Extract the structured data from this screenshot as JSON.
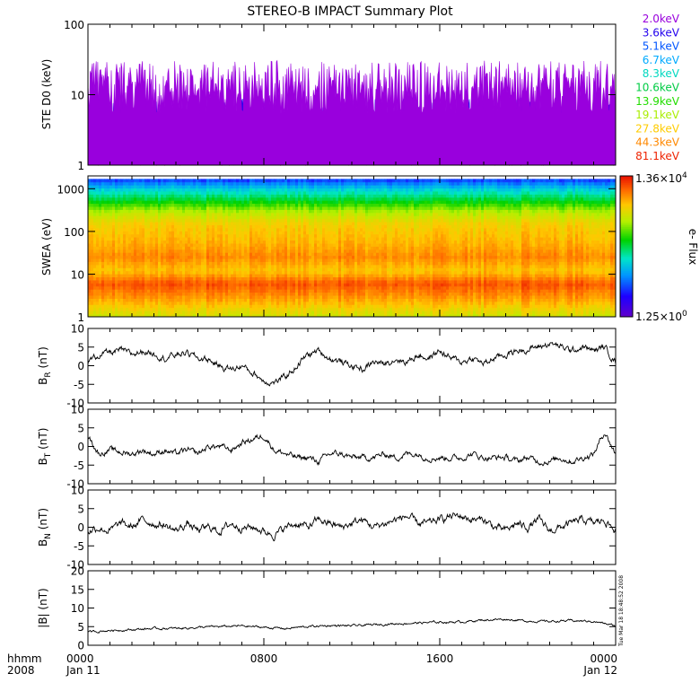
{
  "title": "STEREO-B IMPACT Summary Plot",
  "footer": {
    "unit_label": "hhmm",
    "year": "2008",
    "ticks": [
      {
        "time": "0000",
        "date": "Jan 11"
      },
      {
        "time": "0800",
        "date": ""
      },
      {
        "time": "1600",
        "date": ""
      },
      {
        "time": "0000",
        "date": "Jan 12"
      }
    ]
  },
  "timestamp": "Tue Mar 18 18:48:52 2008",
  "colors": {
    "line": "#000000",
    "frame": "#000000"
  },
  "chart_data": [
    {
      "type": "line",
      "ylabel": "STE D0 (keV)",
      "yscale": "log",
      "ylim": [
        1,
        100
      ],
      "yticks": [
        "1",
        "10",
        "100"
      ],
      "xlim_hours": [
        0,
        24
      ],
      "legend_placement": "right",
      "series": [
        {
          "name": "2.0keV",
          "color": "#9900dd",
          "typical": 16,
          "spread": 0.28,
          "floor": 6
        },
        {
          "name": "3.6keV",
          "color": "#2200ee",
          "typical": 5.5,
          "spread": 0.22,
          "floor": 3
        },
        {
          "name": "5.1keV",
          "color": "#0055ff",
          "typical": 3.6,
          "spread": 0.18,
          "floor": 2.4
        },
        {
          "name": "6.7keV",
          "color": "#00aaff",
          "typical": 2.7,
          "spread": 0.12,
          "floor": 2.2
        },
        {
          "name": "8.3keV",
          "color": "#00d8c0",
          "typical": 2.2,
          "spread": 0.09,
          "floor": 2.0
        },
        {
          "name": "10.6keV",
          "color": "#00cc44",
          "typical": 1.95,
          "spread": 0.06,
          "floor": 1.8
        },
        {
          "name": "13.9keV",
          "color": "#22dd00",
          "typical": 1.8,
          "spread": 0.05,
          "floor": 1.7
        },
        {
          "name": "19.1keV",
          "color": "#aaee00",
          "typical": 1.6,
          "spread": 0.05,
          "floor": 1.5
        },
        {
          "name": "27.8keV",
          "color": "#ffcc00",
          "typical": 1.4,
          "spread": 0.05,
          "floor": 1.2
        },
        {
          "name": "44.3keV",
          "color": "#ff8800",
          "typical": 1.25,
          "spread": 0.04,
          "floor": 1.1
        },
        {
          "name": "81.1keV",
          "color": "#ee2200",
          "typical": 1.1,
          "spread": 0.03,
          "floor": 1.0
        }
      ]
    },
    {
      "type": "heatmap",
      "ylabel": "SWEA (eV)",
      "yscale": "log",
      "ylim": [
        1,
        2000
      ],
      "yticks": [
        "1",
        "10",
        "100",
        "1000"
      ],
      "xlim_hours": [
        0,
        24
      ],
      "colorbar": {
        "label": "e- Flux",
        "max_mantissa": "1.36×10",
        "max_exp": "4",
        "min_mantissa": "1.25×10",
        "min_exp": "0",
        "scale": "log"
      },
      "energy_profile_log_flux": [
        {
          "energy_ev": 1,
          "value": 0.72
        },
        {
          "energy_ev": 3,
          "value": 0.86
        },
        {
          "energy_ev": 6,
          "value": 0.93
        },
        {
          "energy_ev": 12,
          "value": 0.8
        },
        {
          "energy_ev": 25,
          "value": 0.87
        },
        {
          "energy_ev": 60,
          "value": 0.82
        },
        {
          "energy_ev": 150,
          "value": 0.78
        },
        {
          "energy_ev": 300,
          "value": 0.68
        },
        {
          "energy_ev": 600,
          "value": 0.5
        },
        {
          "energy_ev": 1000,
          "value": 0.38
        },
        {
          "energy_ev": 1700,
          "value": 0.2
        }
      ]
    },
    {
      "type": "line",
      "ylabel_main": "B",
      "ylabel_sub": "R",
      "ylabel_unit": " (nT)",
      "ylim": [
        -10,
        10
      ],
      "yticks": [
        "-10",
        "-5",
        "0",
        "5",
        "10"
      ],
      "xlim_hours": [
        0,
        24
      ],
      "x_hours": [
        0,
        0.5,
        1,
        1.5,
        2,
        2.5,
        3,
        3.5,
        4,
        4.5,
        5,
        5.5,
        6,
        6.5,
        7,
        7.5,
        8,
        8.5,
        9,
        9.5,
        10,
        10.5,
        11,
        11.5,
        12,
        12.5,
        13,
        13.5,
        14,
        14.5,
        15,
        15.5,
        16,
        16.5,
        17,
        17.5,
        18,
        18.5,
        19,
        19.5,
        20,
        20.5,
        21,
        21.5,
        22,
        22.5,
        23,
        23.5,
        24
      ],
      "values": [
        1,
        3,
        3.5,
        4,
        3,
        4,
        3.5,
        2,
        3,
        3.5,
        2,
        1.5,
        0,
        -1,
        0,
        -2,
        -4,
        -4.5,
        -3,
        0,
        3,
        4,
        2,
        1,
        0,
        -1,
        1,
        0.5,
        2,
        1,
        3,
        2,
        4,
        2,
        1,
        2,
        0.5,
        2,
        3,
        4,
        4.5,
        5,
        6,
        5,
        4,
        5,
        4,
        5,
        1
      ],
      "noise_amp": 1.2
    },
    {
      "type": "line",
      "ylabel_main": "B",
      "ylabel_sub": "T",
      "ylabel_unit": " (nT)",
      "ylim": [
        -10,
        10
      ],
      "yticks": [
        "-10",
        "-5",
        "0",
        "5",
        "10"
      ],
      "xlim_hours": [
        0,
        24
      ],
      "x_hours": [
        0,
        0.5,
        1,
        1.5,
        2,
        2.5,
        3,
        3.5,
        4,
        4.5,
        5,
        5.5,
        6,
        6.5,
        7,
        7.5,
        8,
        8.5,
        9,
        9.5,
        10,
        10.5,
        11,
        11.5,
        12,
        12.5,
        13,
        13.5,
        14,
        14.5,
        15,
        15.5,
        16,
        16.5,
        17,
        17.5,
        18,
        18.5,
        19,
        19.5,
        20,
        20.5,
        21,
        21.5,
        22,
        22.5,
        23,
        23.5,
        24
      ],
      "values": [
        3,
        -2,
        -1,
        -1.5,
        -2,
        -1,
        -2,
        -1,
        -2,
        -1,
        -2,
        0,
        0,
        -1,
        1,
        2,
        3,
        -1,
        -2,
        -3,
        -3,
        -4,
        -2,
        -2,
        -3,
        -3,
        -3,
        -2,
        -3,
        -2,
        -2,
        -3,
        -3,
        -3,
        -3,
        -2,
        -3,
        -3,
        -3,
        -4,
        -3,
        -4,
        -4,
        -3,
        -4,
        -3,
        -2,
        4,
        -2
      ],
      "noise_amp": 1.1
    },
    {
      "type": "line",
      "ylabel_main": "B",
      "ylabel_sub": "N",
      "ylabel_unit": " (nT)",
      "ylim": [
        -10,
        10
      ],
      "yticks": [
        "-10",
        "-5",
        "0",
        "5",
        "10"
      ],
      "xlim_hours": [
        0,
        24
      ],
      "x_hours": [
        0,
        0.5,
        1,
        1.5,
        2,
        2.5,
        3,
        3.5,
        4,
        4.5,
        5,
        5.5,
        6,
        6.5,
        7,
        7.5,
        8,
        8.5,
        9,
        9.5,
        10,
        10.5,
        11,
        11.5,
        12,
        12.5,
        13,
        13.5,
        14,
        14.5,
        15,
        15.5,
        16,
        16.5,
        17,
        17.5,
        18,
        18.5,
        19,
        19.5,
        20,
        20.5,
        21,
        21.5,
        22,
        22.5,
        23,
        23.5,
        24
      ],
      "values": [
        -1,
        0,
        -1,
        1,
        0,
        2,
        1,
        0.5,
        -1,
        1,
        -1,
        0,
        -1,
        1,
        0,
        0,
        -1,
        -2,
        0,
        1,
        0,
        2,
        1,
        0,
        1,
        2,
        0,
        1,
        2,
        3,
        1,
        1,
        2,
        3,
        3,
        2,
        2,
        0,
        -1,
        1,
        0,
        2,
        -1,
        0,
        1,
        2,
        1,
        2,
        -1
      ],
      "noise_amp": 1.4
    },
    {
      "type": "line",
      "ylabel_main": "|B|",
      "ylabel_sub": "",
      "ylabel_unit": " (nT)",
      "ylim": [
        0,
        20
      ],
      "yticks": [
        "0",
        "5",
        "10",
        "15",
        "20"
      ],
      "xlim_hours": [
        0,
        24
      ],
      "x_hours": [
        0,
        1,
        2,
        3,
        4,
        5,
        6,
        7,
        8,
        9,
        10,
        11,
        12,
        13,
        14,
        15,
        16,
        17,
        18,
        19,
        20,
        21,
        22,
        23,
        24
      ],
      "values": [
        3.5,
        4,
        4.2,
        4.5,
        4.5,
        4.8,
        5,
        5.2,
        4.8,
        4.5,
        5,
        5.3,
        5.2,
        5.5,
        5.8,
        6,
        6.2,
        6.3,
        6.8,
        7,
        6.5,
        6.4,
        6.6,
        6.4,
        5.2
      ],
      "noise_amp": 0.4
    }
  ]
}
